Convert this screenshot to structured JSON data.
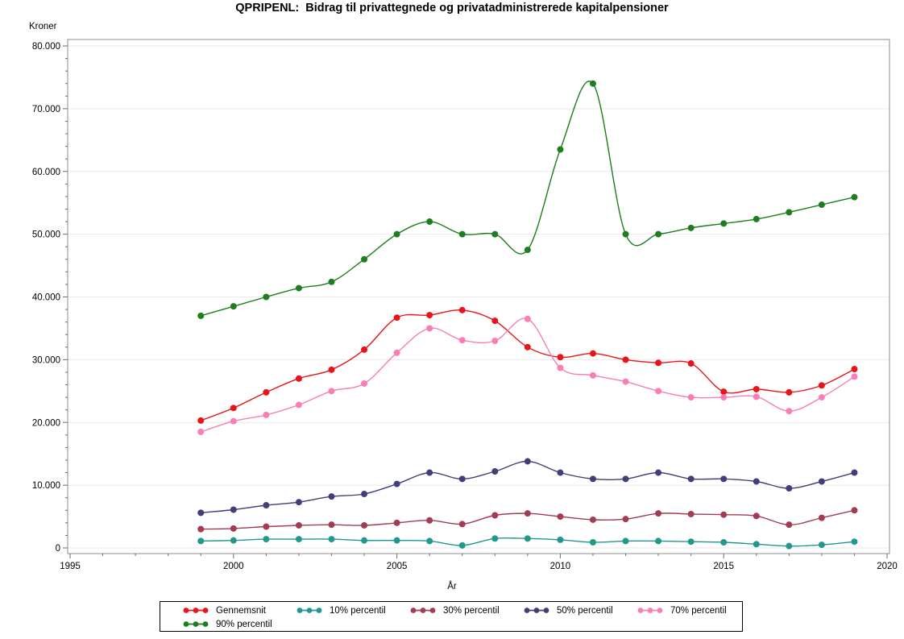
{
  "chart_data": {
    "type": "line",
    "title": "QPRIPENL:  Bidrag til privattegnede og privatadministrerede kapitalpensioner",
    "xlabel": "År",
    "ylabel": "Kroner",
    "xlim": [
      1995,
      2020
    ],
    "ylim": [
      0,
      80000
    ],
    "grid": "horizontal",
    "legend_position": "bottom",
    "line_style": "smooth-spline-with-circle-markers",
    "x_ticks": [
      {
        "value": 1995,
        "label": "1995"
      },
      {
        "value": 2000,
        "label": "2000"
      },
      {
        "value": 2005,
        "label": "2005"
      },
      {
        "value": 2010,
        "label": "2010"
      },
      {
        "value": 2015,
        "label": "2015"
      },
      {
        "value": 2020,
        "label": "2020"
      }
    ],
    "x_minor_step": 1,
    "y_ticks": [
      {
        "value": 0,
        "label": "0"
      },
      {
        "value": 10000,
        "label": "10.000"
      },
      {
        "value": 20000,
        "label": "20.000"
      },
      {
        "value": 30000,
        "label": "30.000"
      },
      {
        "value": 40000,
        "label": "40.000"
      },
      {
        "value": 50000,
        "label": "50.000"
      },
      {
        "value": 60000,
        "label": "60.000"
      },
      {
        "value": 70000,
        "label": "70.000"
      },
      {
        "value": 80000,
        "label": "80.000"
      }
    ],
    "y_minor_step": 2000,
    "x": [
      1999,
      2000,
      2001,
      2002,
      2003,
      2004,
      2005,
      2006,
      2007,
      2008,
      2009,
      2010,
      2011,
      2012,
      2013,
      2014,
      2015,
      2016,
      2017,
      2018,
      2019
    ],
    "series": [
      {
        "name": "Gennemsnit",
        "color": "#e8131b",
        "values": [
          20300,
          22300,
          24800,
          27000,
          28400,
          31600,
          36700,
          37100,
          37900,
          36200,
          32000,
          30400,
          31000,
          30000,
          29500,
          29400,
          24900,
          25300,
          24800,
          25900,
          28500
        ]
      },
      {
        "name": "10% percentil",
        "color": "#20998c",
        "values": [
          1100,
          1200,
          1400,
          1400,
          1400,
          1200,
          1200,
          1100,
          400,
          1500,
          1500,
          1300,
          900,
          1100,
          1100,
          1000,
          900,
          600,
          300,
          500,
          1000
        ]
      },
      {
        "name": "30% percentil",
        "color": "#a33b52",
        "values": [
          3000,
          3100,
          3400,
          3600,
          3700,
          3600,
          4000,
          4400,
          3800,
          5200,
          5500,
          5000,
          4500,
          4600,
          5500,
          5400,
          5300,
          5100,
          3700,
          4800,
          6000
        ]
      },
      {
        "name": "50% percentil",
        "color": "#403f78",
        "values": [
          5600,
          6100,
          6800,
          7300,
          8200,
          8600,
          10200,
          12000,
          11000,
          12200,
          13800,
          12000,
          11000,
          11000,
          12000,
          11000,
          11000,
          10600,
          9500,
          10600,
          12000
        ]
      },
      {
        "name": "70% percentil",
        "color": "#f97eb6",
        "values": [
          18500,
          20200,
          21200,
          22800,
          25000,
          26200,
          31100,
          35000,
          33100,
          33000,
          36500,
          28700,
          27500,
          26500,
          25000,
          24000,
          24000,
          24100,
          21800,
          24000,
          27300
        ]
      },
      {
        "name": "90% percentil",
        "color": "#1e7d1e",
        "values": [
          37000,
          38500,
          40000,
          41400,
          42400,
          46000,
          50000,
          52000,
          50000,
          50000,
          47500,
          63500,
          74000,
          50000,
          50000,
          51000,
          51700,
          52400,
          53500,
          54700,
          55900
        ]
      }
    ],
    "legend_rows": [
      5,
      1
    ]
  },
  "style": {
    "frame_color": "#8c8c8c",
    "grid_color": "#e9e9e9",
    "tick_color": "#6e6e6e",
    "text_color": "#000000",
    "background": "#ffffff"
  }
}
